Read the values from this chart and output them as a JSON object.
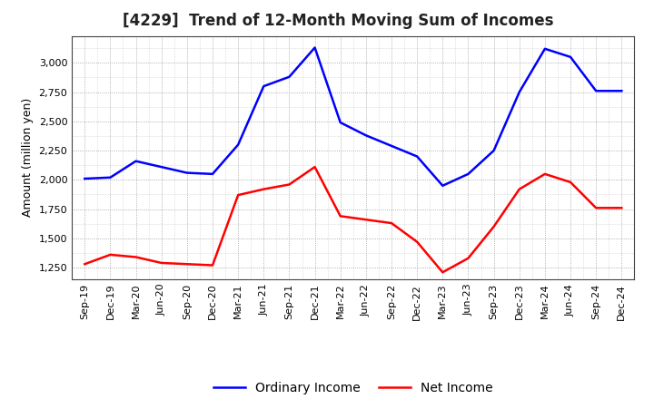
{
  "title": "[4229]  Trend of 12-Month Moving Sum of Incomes",
  "ylabel": "Amount (million yen)",
  "background_color": "#ffffff",
  "plot_bg_color": "#ffffff",
  "grid_color": "#999999",
  "x_labels": [
    "Sep-19",
    "Dec-19",
    "Mar-20",
    "Jun-20",
    "Sep-20",
    "Dec-20",
    "Mar-21",
    "Jun-21",
    "Sep-21",
    "Dec-21",
    "Mar-22",
    "Jun-22",
    "Sep-22",
    "Dec-22",
    "Mar-23",
    "Jun-23",
    "Sep-23",
    "Dec-23",
    "Mar-24",
    "Jun-24",
    "Sep-24",
    "Dec-24"
  ],
  "ordinary_income": [
    2010,
    2020,
    2160,
    2110,
    2060,
    2050,
    2300,
    2800,
    2880,
    3130,
    2490,
    2380,
    2290,
    2200,
    1950,
    2050,
    2250,
    2750,
    3120,
    3050,
    2760,
    2760
  ],
  "net_income": [
    1280,
    1360,
    1340,
    1290,
    1280,
    1270,
    1870,
    1920,
    1960,
    2110,
    1690,
    1660,
    1630,
    1470,
    1210,
    1330,
    1600,
    1920,
    2050,
    1980,
    1760,
    1760
  ],
  "ordinary_income_color": "#0000ff",
  "net_income_color": "#ff0000",
  "ylim": [
    1150,
    3230
  ],
  "yticks": [
    1250,
    1500,
    1750,
    2000,
    2250,
    2500,
    2750,
    3000
  ],
  "line_width": 1.8,
  "title_fontsize": 12,
  "tick_fontsize": 8,
  "ylabel_fontsize": 9,
  "legend_labels": [
    "Ordinary Income",
    "Net Income"
  ],
  "legend_fontsize": 10
}
